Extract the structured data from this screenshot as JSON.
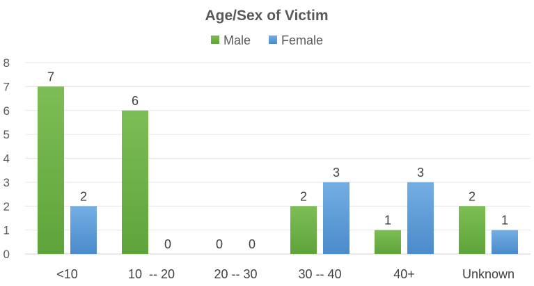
{
  "chart_data": {
    "type": "bar",
    "title": "Age/Sex of Victim",
    "categories": [
      "<10",
      "10  -- 20",
      "20 -- 30",
      "30 -- 40",
      "40+",
      "Unknown"
    ],
    "series": [
      {
        "name": "Male",
        "values": [
          7,
          6,
          0,
          2,
          1,
          2
        ],
        "color": "#6aad45"
      },
      {
        "name": "Female",
        "values": [
          2,
          0,
          0,
          3,
          3,
          1
        ],
        "color": "#5b9bd5"
      }
    ],
    "ylim": [
      0,
      8
    ],
    "yticks": [
      0,
      1,
      2,
      3,
      4,
      5,
      6,
      7,
      8
    ],
    "grid": true,
    "legend_position": "top",
    "data_labels": true,
    "xlabel": "",
    "ylabel": ""
  }
}
